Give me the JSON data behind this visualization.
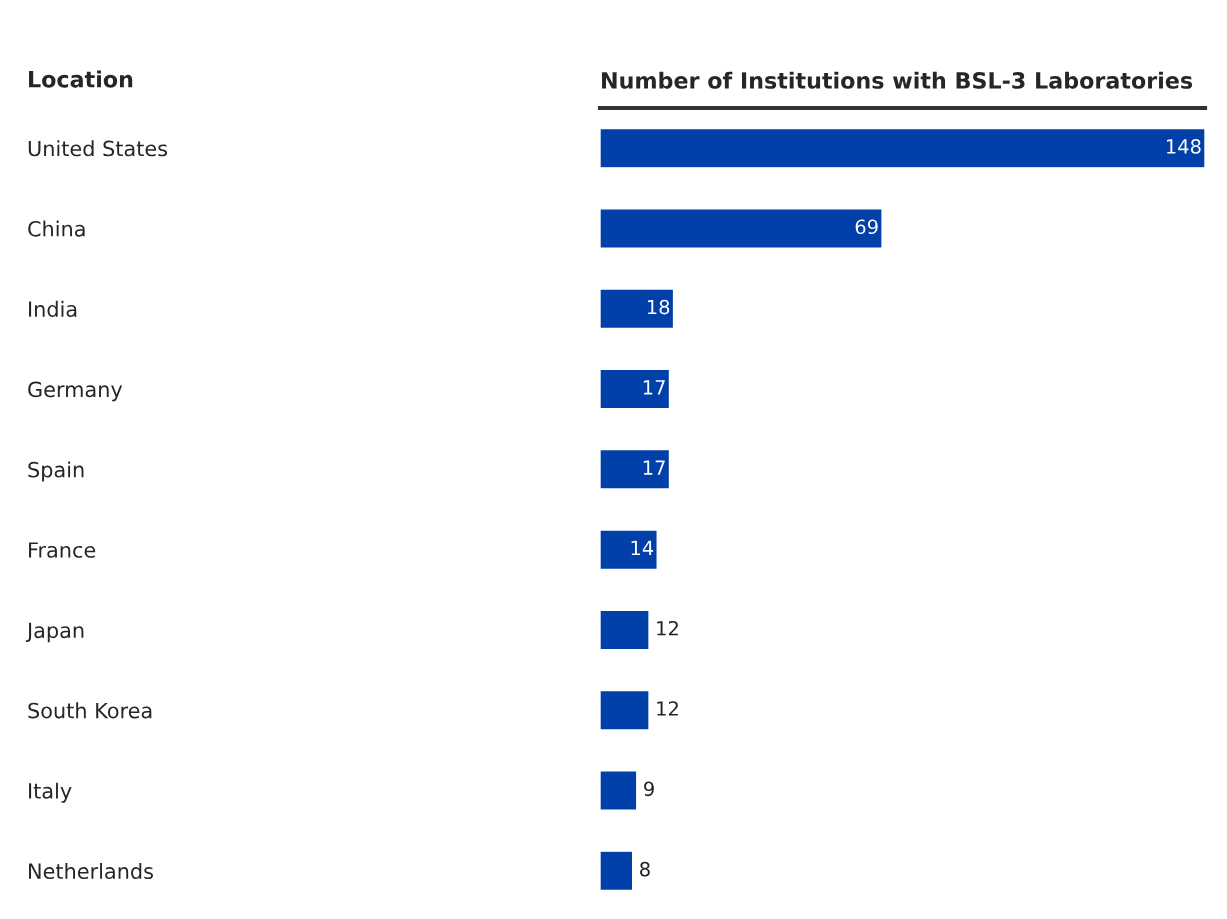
{
  "chart_data": {
    "type": "bar",
    "orientation": "horizontal",
    "ylabel": "Location",
    "xlabel": "Number of Institutions with BSL-3 Laboratories",
    "categories": [
      "United States",
      "China",
      "India",
      "Germany",
      "Spain",
      "France",
      "Japan",
      "South Korea",
      "Italy",
      "Netherlands"
    ],
    "values": [
      148,
      69,
      18,
      17,
      17,
      14,
      12,
      12,
      9,
      8
    ],
    "color": "#0040a8",
    "data_labels": true,
    "grid": false,
    "legend": false
  }
}
